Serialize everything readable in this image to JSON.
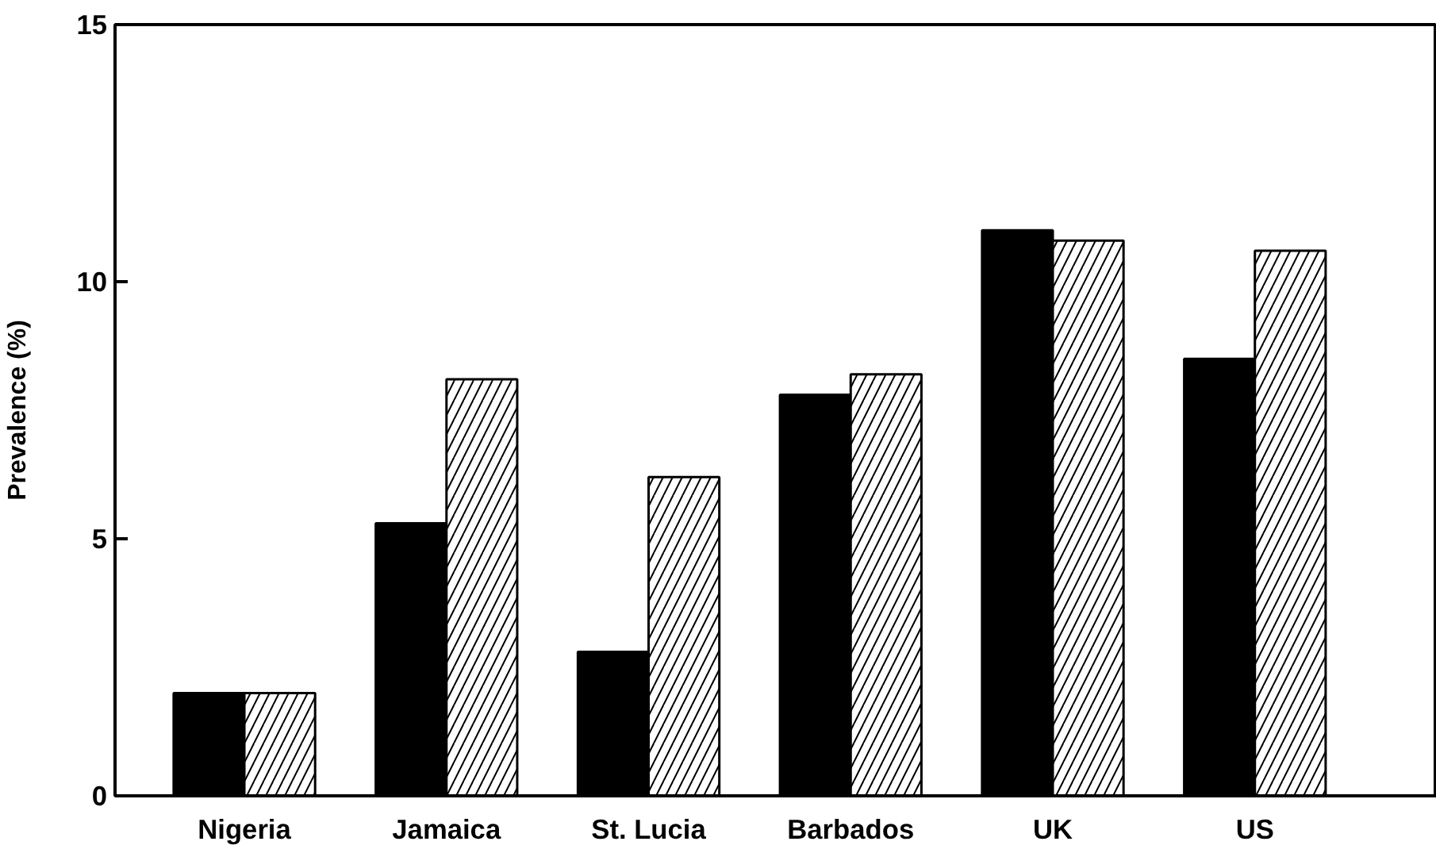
{
  "chart_data": {
    "type": "bar",
    "ylabel": "Prevalence (%)",
    "categories": [
      "Nigeria",
      "Jamaica",
      "St. Lucia",
      "Barbados",
      "UK",
      "US"
    ],
    "series": [
      {
        "color": "#000000",
        "values": [
          2.0,
          5.3,
          2.8,
          7.8,
          11.0,
          8.5
        ]
      },
      {
        "color": "#ffffff",
        "values": [
          2.0,
          8.1,
          6.2,
          8.2,
          10.8,
          10.6
        ]
      }
    ],
    "ylim": [
      0,
      15
    ],
    "yticks": [
      0,
      5,
      10,
      15
    ]
  }
}
